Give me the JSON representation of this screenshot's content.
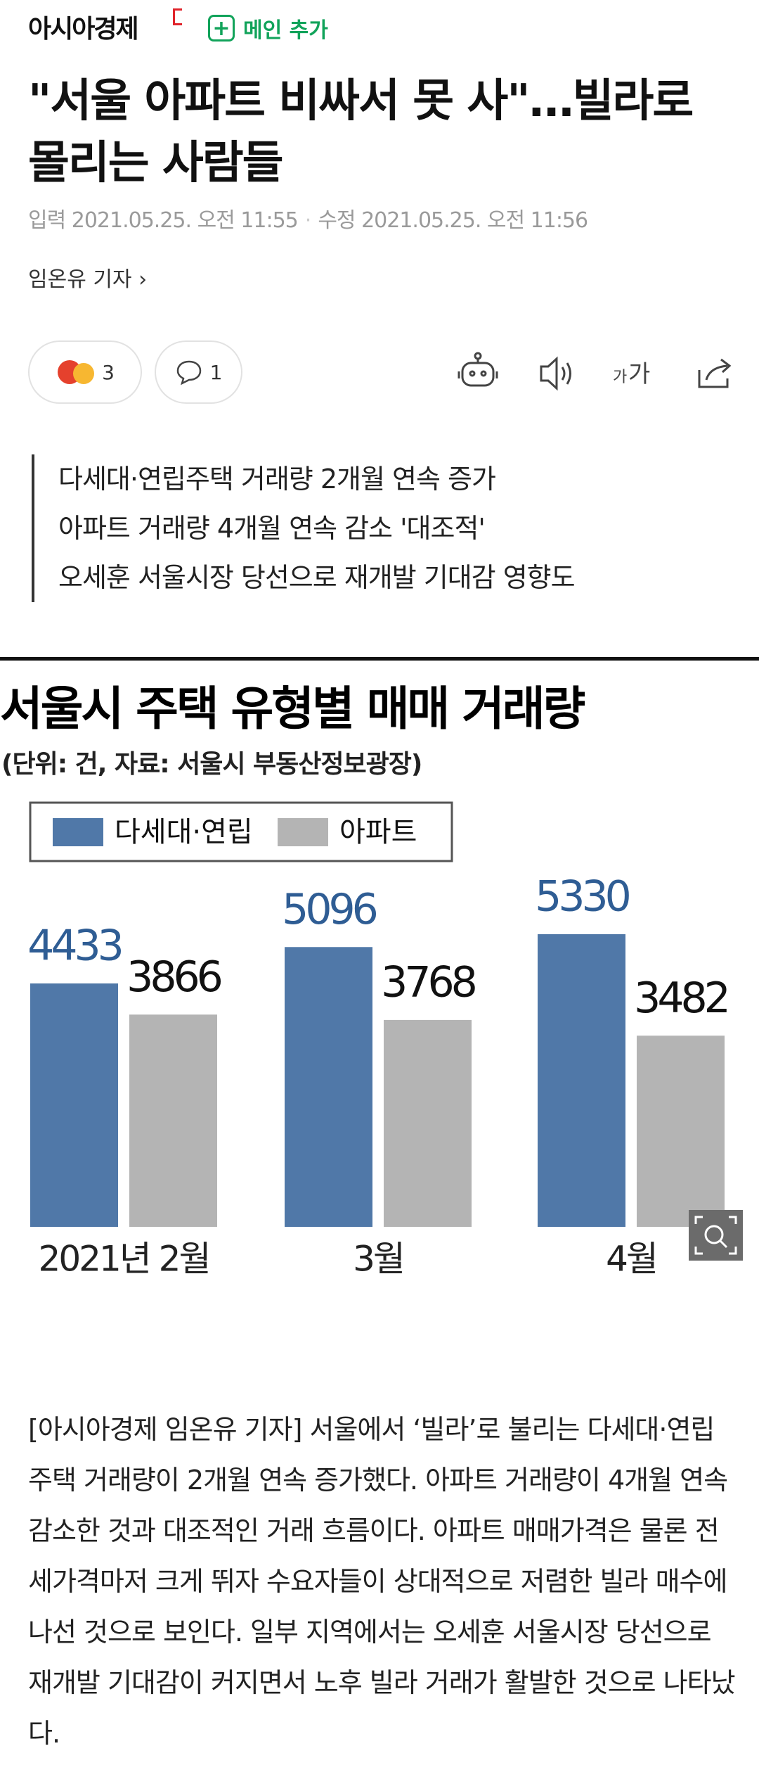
{
  "header": {
    "logo": "아시아경제",
    "add_button": "메인 추가"
  },
  "article": {
    "title": "\"서울 아파트 비싸서 못 사\"…빌라로 몰리는 사람들",
    "published": "입력 2021.05.25. 오전 11:55",
    "modified": "수정 2021.05.25. 오전 11:56",
    "reporter": "임온유 기자"
  },
  "toolbar": {
    "reactions": 3,
    "comments": 1,
    "font_size": [
      "가",
      "가"
    ]
  },
  "summary": [
    "다세대·연립주택 거래량 2개월 연속 증가",
    "아파트 거래량 4개월 연속 감소 '대조적'",
    "오세훈 서울시장 당선으로 재개발 기대감 영향도"
  ],
  "chart_data": {
    "type": "bar",
    "title": "서울시 주택 유형별 매매 거래량",
    "subtitle": "(단위: 건, 자료: 서울시 부동산정보광장)",
    "categories": [
      "2021년 2월",
      "3월",
      "4월"
    ],
    "series": [
      {
        "name": "다세대·연립",
        "color": "#5078a8",
        "label_color": "#2f5d94",
        "values": [
          4433,
          5096,
          5330
        ]
      },
      {
        "name": "아파트",
        "color": "#b4b4b4",
        "label_color": "#111111",
        "values": [
          3866,
          3768,
          3482
        ]
      }
    ]
  },
  "body": "[아시아경제 임온유 기자] 서울에서 ‘빌라’로 불리는 다세대·연립주택 거래량이 2개월 연속 증가했다. 아파트 거래량이 4개월 연속 감소한 것과 대조적인 거래 흐름이다. 아파트 매매가격은 물론 전세가격마저 크게 뛰자 수요자들이 상대적으로 저렴한 빌라 매수에 나선 것으로 보인다. 일부 지역에서는 오세훈 서울시장 당선으로 재개발 기대감이 커지면서 노후 빌라 거래가 활발한 것으로 나타났다."
}
